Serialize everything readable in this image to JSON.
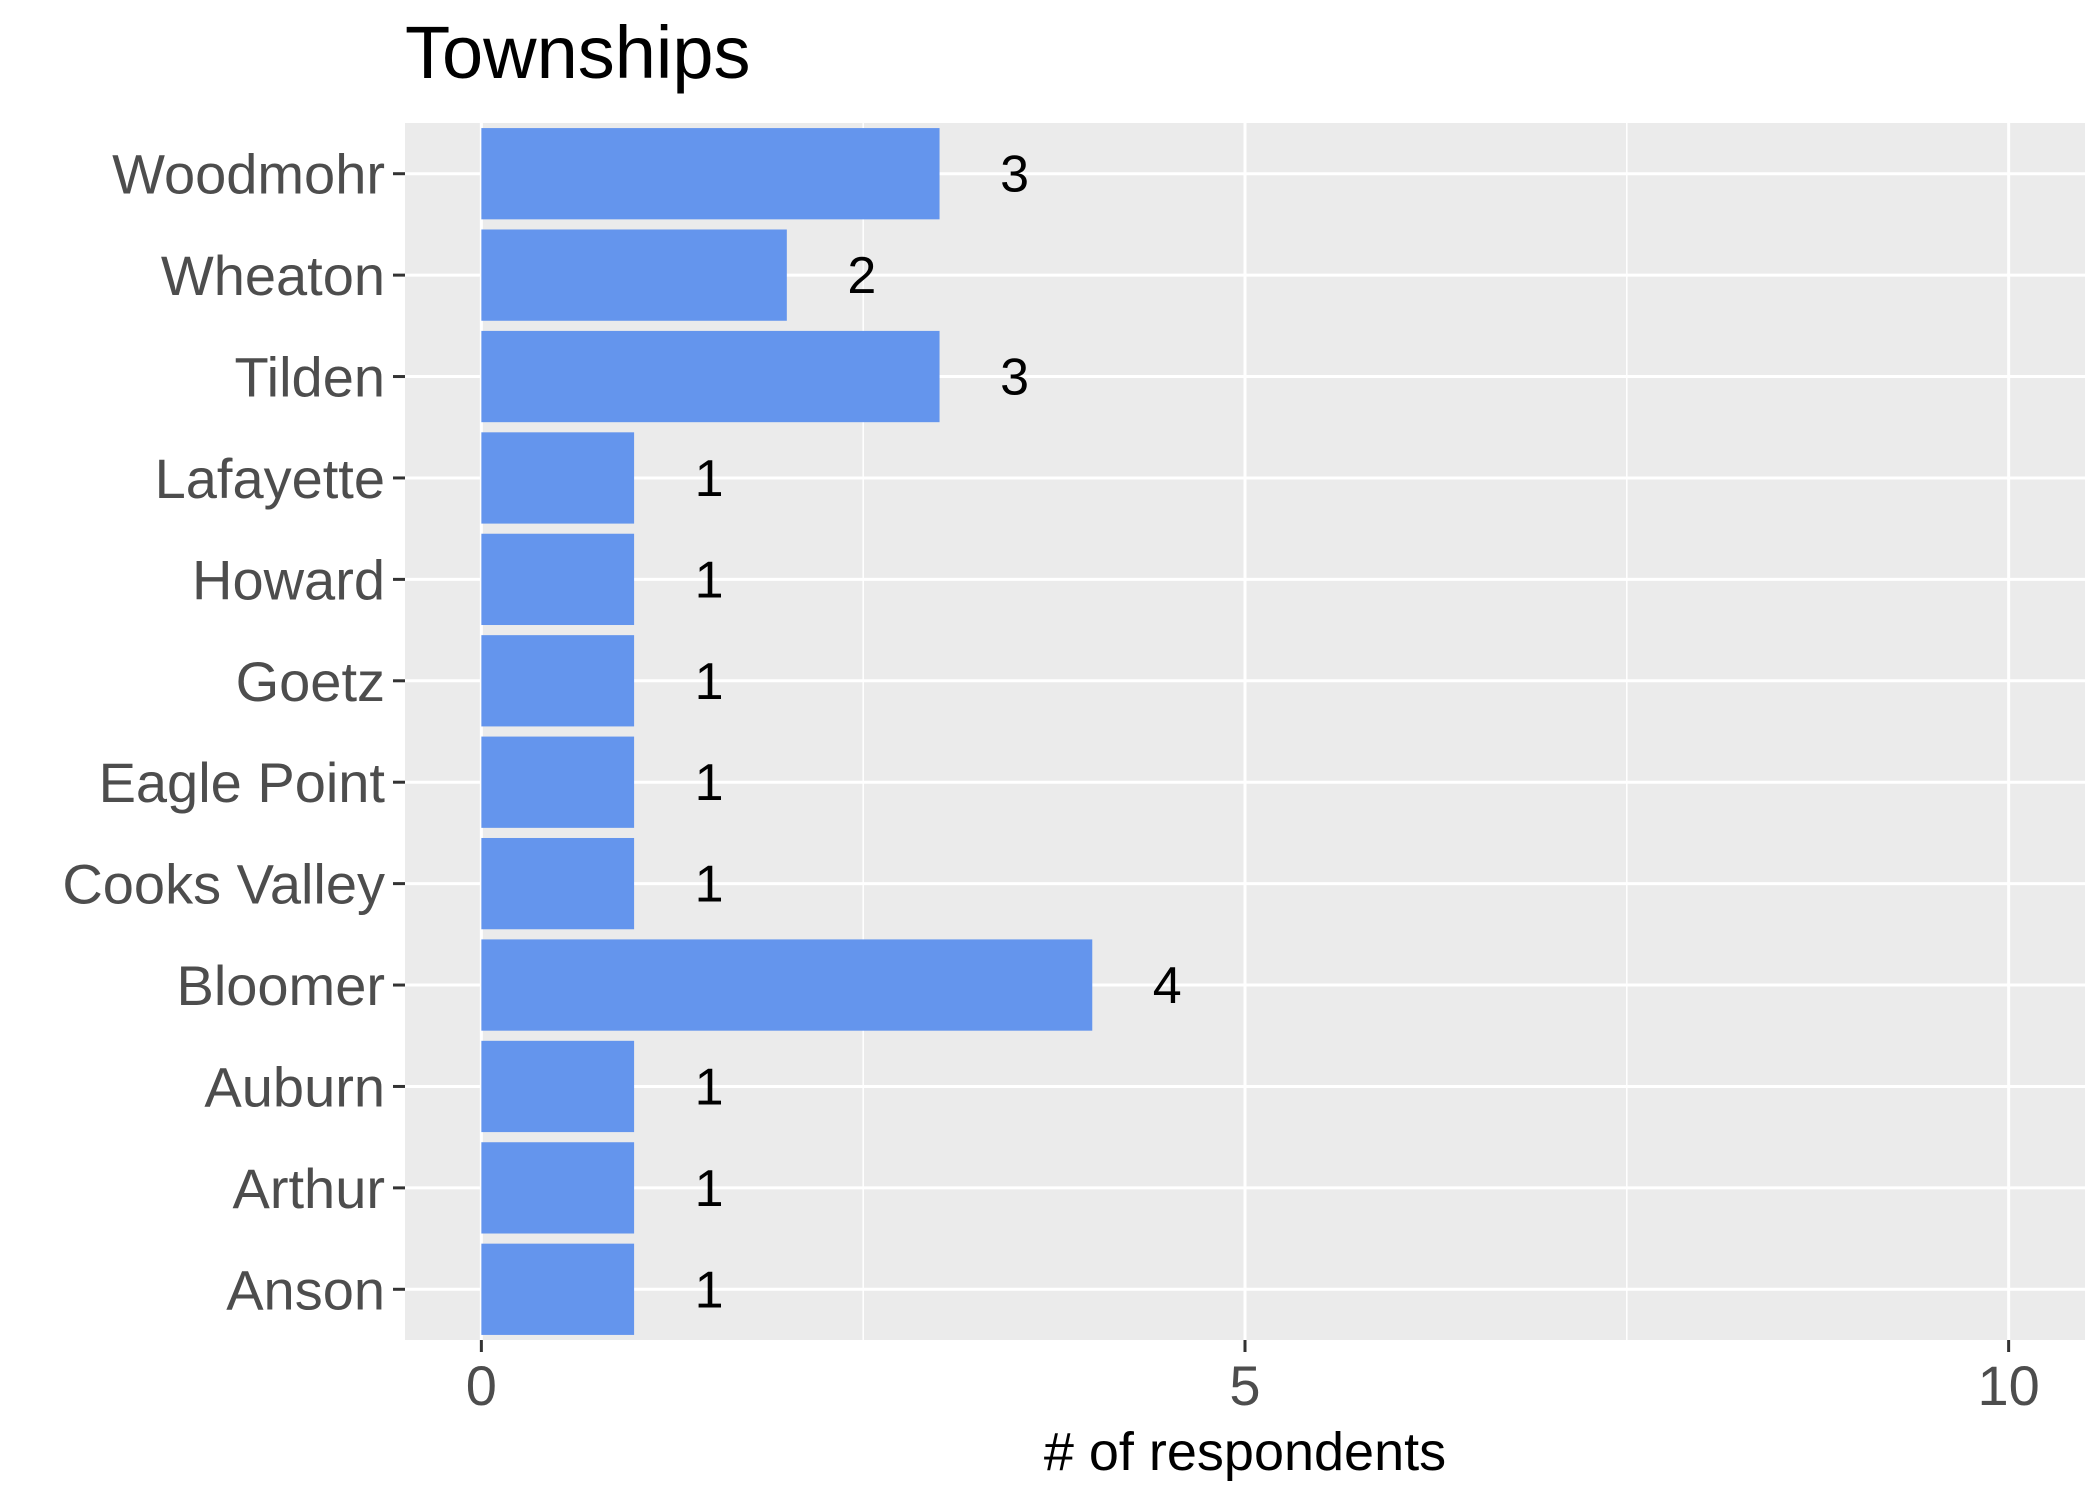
{
  "chart_data": {
    "type": "bar",
    "orientation": "horizontal",
    "title": "Townships",
    "xlabel": "# of respondents",
    "ylabel": "",
    "categories": [
      "Woodmohr",
      "Wheaton",
      "Tilden",
      "Lafayette",
      "Howard",
      "Goetz",
      "Eagle Point",
      "Cooks Valley",
      "Bloomer",
      "Auburn",
      "Arthur",
      "Anson"
    ],
    "values": [
      3,
      2,
      3,
      1,
      1,
      1,
      1,
      1,
      4,
      1,
      1,
      1
    ],
    "data_labels": [
      "3",
      "2",
      "3",
      "1",
      "1",
      "1",
      "1",
      "1",
      "4",
      "1",
      "1",
      "1"
    ],
    "xlim": [
      -0.5,
      10.5
    ],
    "x_ticks": [
      0,
      5,
      10
    ],
    "x_tick_labels": [
      "0",
      "5",
      "10"
    ],
    "grid": true,
    "colors": {
      "bar": "#6495ED",
      "panel": "#EBEBEB",
      "grid": "#FFFFFF"
    }
  }
}
